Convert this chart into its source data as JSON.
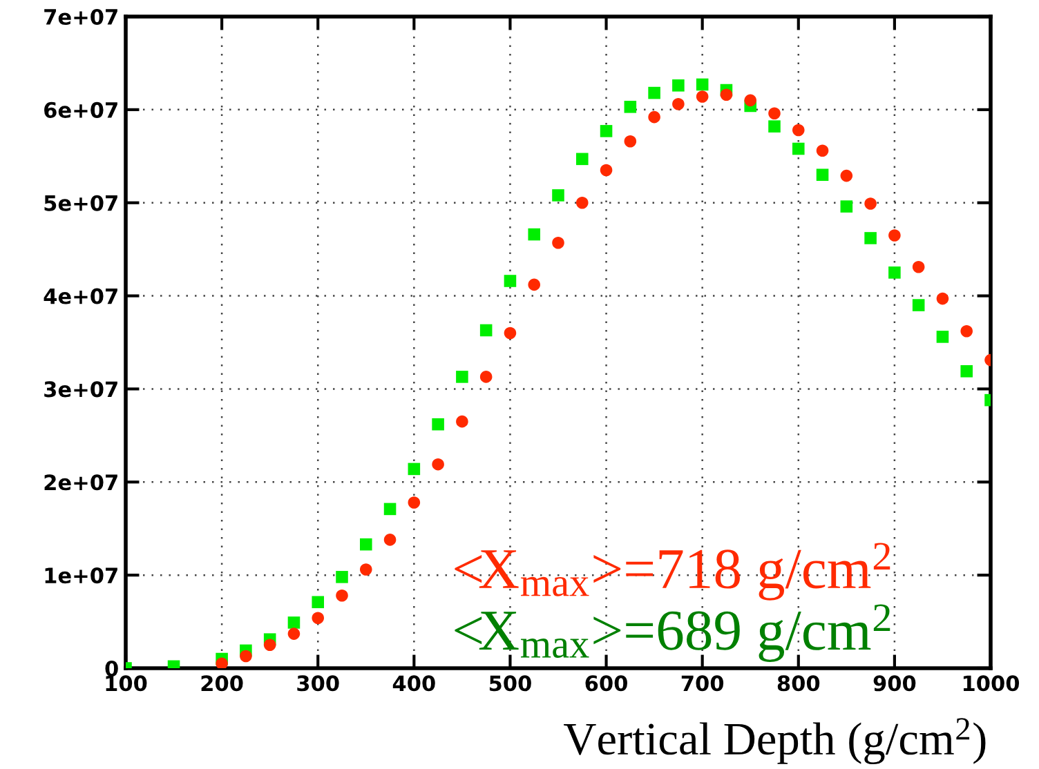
{
  "chart_data": {
    "type": "scatter",
    "xlabel": "Vertical Depth (g/cm$^{2}$)",
    "xlim": [
      100,
      1000
    ],
    "xticks": [
      100,
      200,
      300,
      400,
      500,
      600,
      700,
      800,
      900,
      1000
    ],
    "ylim": [
      0,
      70000000
    ],
    "yticks": [
      {
        "value": 0,
        "label": "0"
      },
      {
        "value": 10000000,
        "label": "1e+07"
      },
      {
        "value": 20000000,
        "label": "2e+07"
      },
      {
        "value": 30000000,
        "label": "3e+07"
      },
      {
        "value": 40000000,
        "label": "4e+07"
      },
      {
        "value": 50000000,
        "label": "5e+07"
      },
      {
        "value": 60000000,
        "label": "6e+07"
      },
      {
        "value": 70000000,
        "label": "7e+07"
      }
    ],
    "grid": true,
    "legend": false,
    "series": [
      {
        "color": "#ff2a00",
        "marker": "circle",
        "x": [
          200,
          225,
          250,
          275,
          300,
          325,
          350,
          375,
          400,
          425,
          450,
          475,
          500,
          525,
          550,
          575,
          600,
          625,
          650,
          675,
          700,
          725,
          750,
          775,
          800,
          825,
          850,
          875,
          900,
          925,
          950,
          975,
          1000
        ],
        "values": [
          500000,
          1300000,
          2500000,
          3700000,
          5400000,
          7800000,
          10600000,
          13800000,
          17800000,
          21900000,
          26500000,
          31300000,
          36000000,
          41200000,
          45700000,
          50000000,
          53500000,
          56600000,
          59200000,
          60600000,
          61400000,
          61600000,
          61000000,
          59600000,
          57800000,
          55600000,
          52900000,
          49900000,
          46500000,
          43100000,
          39700000,
          36200000,
          33100000
        ]
      },
      {
        "color": "#00ee00",
        "marker": "square",
        "x": [
          100,
          150,
          200,
          225,
          250,
          275,
          300,
          325,
          350,
          375,
          400,
          425,
          450,
          475,
          500,
          525,
          550,
          575,
          600,
          625,
          650,
          675,
          700,
          725,
          750,
          775,
          800,
          825,
          850,
          875,
          900,
          925,
          950,
          975,
          1000
        ],
        "values": [
          0,
          200000,
          1000000,
          1900000,
          3100000,
          4900000,
          7100000,
          9800000,
          13300000,
          17100000,
          21400000,
          26200000,
          31300000,
          36300000,
          41600000,
          46600000,
          50800000,
          54700000,
          57700000,
          60300000,
          61800000,
          62600000,
          62700000,
          62100000,
          60400000,
          58200000,
          55800000,
          53000000,
          49600000,
          46200000,
          42500000,
          39000000,
          35600000,
          31900000,
          28800000
        ]
      }
    ],
    "annotations": [
      "<X$_{max}$>=718 g/cm$^{2}$",
      "<X$_{max}$>=689 g/cm$^{2}$"
    ]
  }
}
